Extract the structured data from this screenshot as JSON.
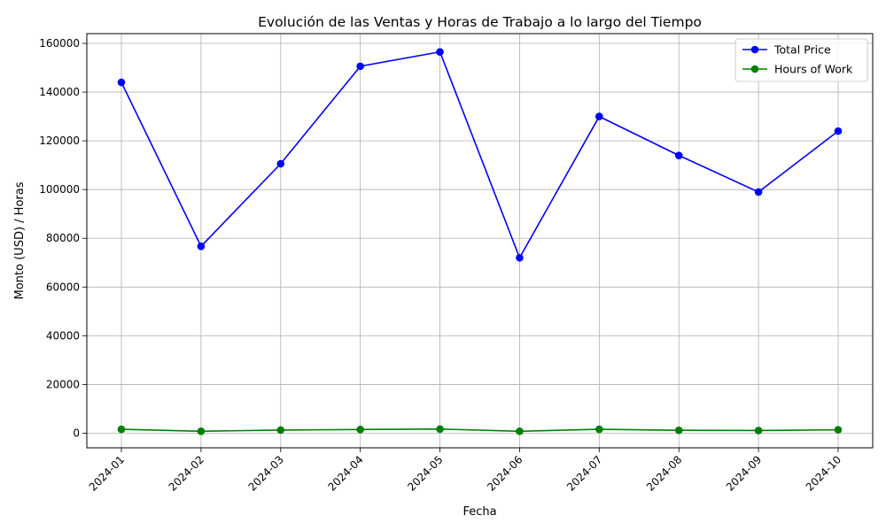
{
  "chart_data": {
    "type": "line",
    "title": "Evolución de las Ventas y Horas de Trabajo a lo largo del Tiempo",
    "xlabel": "Fecha",
    "ylabel": "Monto (USD) / Horas",
    "categories": [
      "2024-01",
      "2024-02",
      "2024-03",
      "2024-04",
      "2024-05",
      "2024-06",
      "2024-07",
      "2024-08",
      "2024-09",
      "2024-10"
    ],
    "ylim": [
      -6000,
      164000
    ],
    "yticks": [
      0,
      20000,
      40000,
      60000,
      80000,
      100000,
      120000,
      140000,
      160000
    ],
    "grid": true,
    "legend_position": "top-right",
    "series": [
      {
        "name": "Total Price",
        "color": "#0000ff",
        "marker": "circle",
        "values": [
          144000,
          76700,
          110600,
          150600,
          156500,
          72000,
          130000,
          114000,
          99000,
          124000
        ]
      },
      {
        "name": "Hours of Work",
        "color": "#008000",
        "marker": "circle",
        "values": [
          1600,
          800,
          1300,
          1500,
          1700,
          800,
          1600,
          1200,
          1100,
          1400
        ]
      }
    ]
  }
}
